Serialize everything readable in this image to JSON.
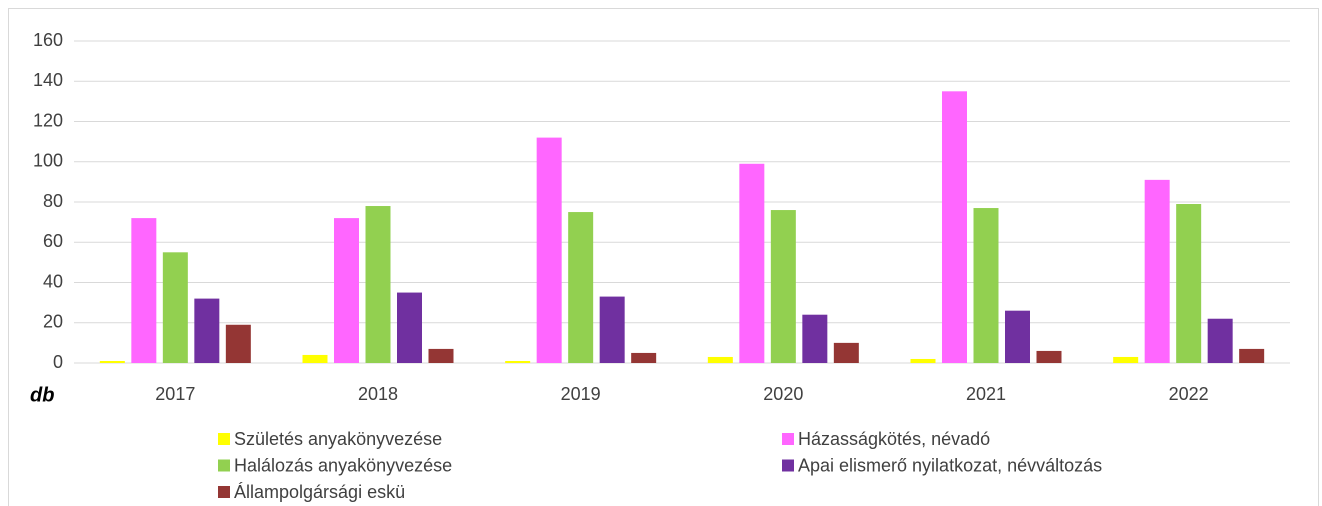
{
  "chart_data": {
    "type": "bar",
    "y_label": "db",
    "categories": [
      "2017",
      "2018",
      "2019",
      "2020",
      "2021",
      "2022"
    ],
    "series": [
      {
        "name": "Születés anyakönyvezése",
        "color": "#ffff00",
        "values": [
          1,
          4,
          1,
          3,
          2,
          3
        ]
      },
      {
        "name": "Házasságkötés, névadó",
        "color": "#ff66ff",
        "values": [
          72,
          72,
          112,
          99,
          135,
          91
        ]
      },
      {
        "name": "Halálozás anyakönyvezése",
        "color": "#92d050",
        "values": [
          55,
          78,
          75,
          76,
          77,
          79
        ]
      },
      {
        "name": "Apai elismerő nyilatkozat, névváltozás",
        "color": "#7030a0",
        "values": [
          32,
          35,
          33,
          24,
          26,
          22
        ]
      },
      {
        "name": "Állampolgársági eskü",
        "color": "#943634",
        "values": [
          19,
          7,
          5,
          10,
          6,
          7
        ]
      }
    ],
    "ylim": [
      0,
      160
    ],
    "yticks": [
      0,
      20,
      40,
      60,
      80,
      100,
      120,
      140,
      160
    ],
    "grid": true
  }
}
